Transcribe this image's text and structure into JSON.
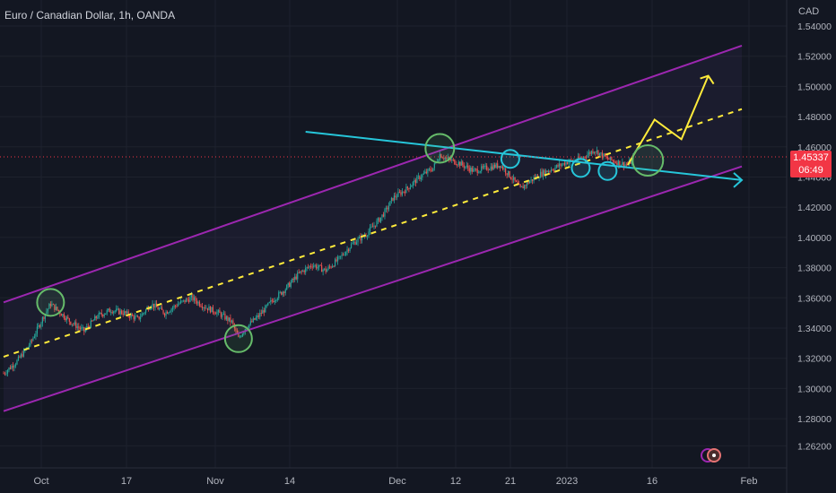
{
  "symbol_title": "Euro / Canadian Dollar, 1h, OANDA",
  "currency": "CAD",
  "current_price": "1.45337",
  "countdown": "06:49",
  "colors": {
    "background": "#131722",
    "up_candle": "#26a69a",
    "down_candle": "#ef5350",
    "channel": "#9c27b0",
    "midline": "#ffeb3b",
    "trendline": "#26c6da",
    "circle_green": "#66bb6a",
    "price_tag": "#f23645"
  },
  "icons": [
    "events-icon-1",
    "events-icon-2"
  ],
  "chart_data": {
    "type": "candlestick",
    "title": "Euro / Canadian Dollar, 1h, OANDA",
    "ylabel": "CAD",
    "ylim": [
      1.26,
      1.55
    ],
    "y_ticks": [
      "1.54000",
      "1.52000",
      "1.50000",
      "1.48000",
      "1.46000",
      "1.44000",
      "1.42000",
      "1.40000",
      "1.38000",
      "1.36000",
      "1.34000",
      "1.32000",
      "1.30000",
      "1.28000",
      "1.26200"
    ],
    "x_ticks": [
      "Oct",
      "17",
      "Nov",
      "14",
      "Dec",
      "12",
      "21",
      "2023",
      "16",
      "Feb"
    ],
    "grid": true,
    "price_path": [
      [
        0,
        1.31
      ],
      [
        2,
        1.318
      ],
      [
        4,
        1.33
      ],
      [
        6,
        1.348
      ],
      [
        7,
        1.356
      ],
      [
        8,
        1.352
      ],
      [
        10,
        1.344
      ],
      [
        12,
        1.338
      ],
      [
        14,
        1.348
      ],
      [
        16,
        1.352
      ],
      [
        18,
        1.35
      ],
      [
        20,
        1.346
      ],
      [
        22,
        1.356
      ],
      [
        24,
        1.35
      ],
      [
        26,
        1.356
      ],
      [
        28,
        1.36
      ],
      [
        30,
        1.354
      ],
      [
        32,
        1.35
      ],
      [
        34,
        1.344
      ],
      [
        35,
        1.333
      ],
      [
        36,
        1.34
      ],
      [
        38,
        1.348
      ],
      [
        40,
        1.358
      ],
      [
        42,
        1.366
      ],
      [
        44,
        1.376
      ],
      [
        46,
        1.382
      ],
      [
        48,
        1.378
      ],
      [
        50,
        1.386
      ],
      [
        52,
        1.396
      ],
      [
        54,
        1.402
      ],
      [
        56,
        1.412
      ],
      [
        57,
        1.418
      ],
      [
        58,
        1.426
      ],
      [
        60,
        1.432
      ],
      [
        62,
        1.44
      ],
      [
        64,
        1.446
      ],
      [
        65,
        1.455
      ],
      [
        66,
        1.452
      ],
      [
        68,
        1.449
      ],
      [
        70,
        1.444
      ],
      [
        72,
        1.446
      ],
      [
        74,
        1.448
      ],
      [
        76,
        1.438
      ],
      [
        77,
        1.432
      ],
      [
        78,
        1.436
      ],
      [
        80,
        1.442
      ],
      [
        82,
        1.446
      ],
      [
        84,
        1.45
      ],
      [
        86,
        1.452
      ],
      [
        88,
        1.458
      ],
      [
        90,
        1.452
      ],
      [
        92,
        1.449
      ],
      [
        93,
        1.448
      ],
      [
        94,
        1.453
      ]
    ],
    "annotations": {
      "channel_upper": [
        [
          0,
          1.357
        ],
        [
          110,
          1.527
        ]
      ],
      "channel_lower": [
        [
          0,
          1.285
        ],
        [
          110,
          1.447
        ]
      ],
      "channel_mid": [
        [
          0,
          1.321
        ],
        [
          110,
          1.485
        ]
      ],
      "trendline": [
        [
          45,
          1.47
        ],
        [
          110,
          1.438
        ]
      ],
      "projection_up": [
        [
          93,
          1.448
        ],
        [
          97,
          1.478
        ],
        [
          101,
          1.465
        ],
        [
          105,
          1.507
        ]
      ]
    }
  }
}
